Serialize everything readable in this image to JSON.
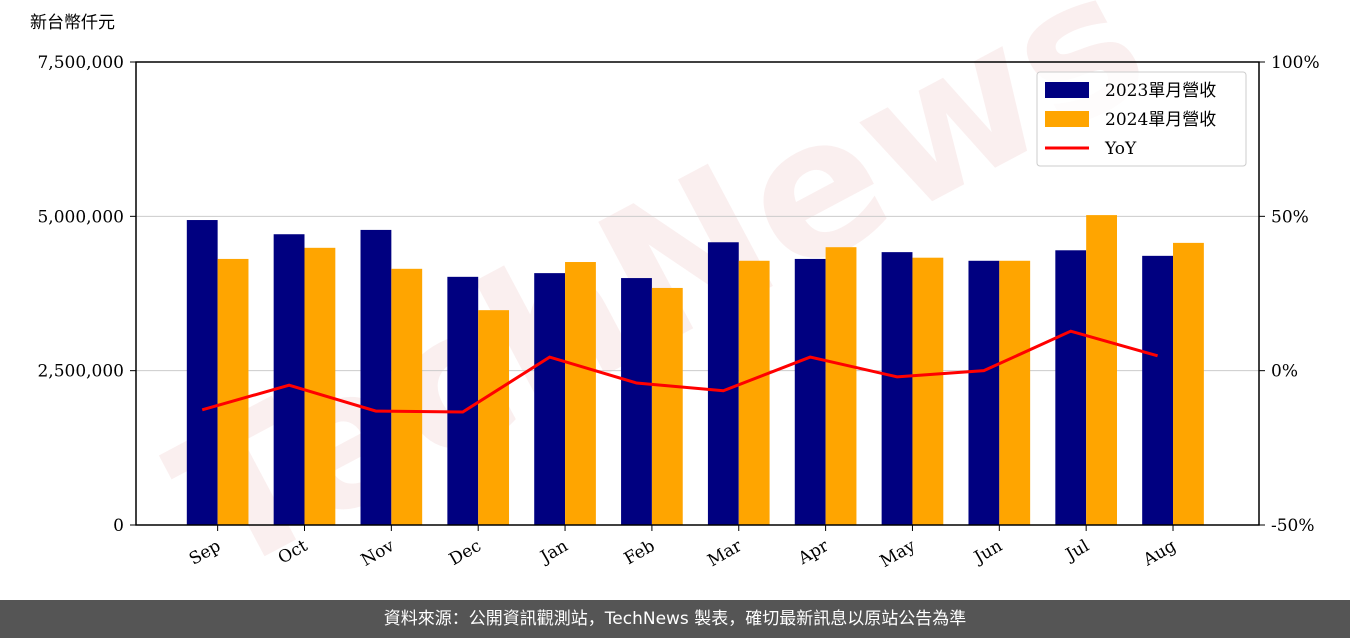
{
  "chart_data": {
    "type": "bar_line",
    "y_label": "新台幣仟元",
    "watermark": "TechNews",
    "categories": [
      "Sep",
      "Oct",
      "Nov",
      "Dec",
      "Jan",
      "Feb",
      "Mar",
      "Apr",
      "May",
      "Jun",
      "Jul",
      "Aug"
    ],
    "series": [
      {
        "name": "2023單月營收",
        "color": "#000080",
        "values": [
          4940000,
          4710000,
          4780000,
          4020000,
          4080000,
          4000000,
          4580000,
          4310000,
          4420000,
          4280000,
          4450000,
          4360000
        ]
      },
      {
        "name": "2024單月營收",
        "color": "#ffa500",
        "values": [
          4310000,
          4490000,
          4150000,
          3480000,
          4260000,
          3840000,
          4280000,
          4500000,
          4330000,
          4280000,
          5020000,
          4570000
        ]
      },
      {
        "name": "YoY",
        "color": "#ff0000",
        "type": "line",
        "axis": "y2",
        "values": [
          -12.7,
          -4.7,
          -13.1,
          -13.4,
          4.4,
          -4.0,
          -6.5,
          4.4,
          -2.0,
          0.0,
          12.8,
          4.8
        ]
      }
    ],
    "ylim": [
      0,
      7500000
    ],
    "yticks": [
      0,
      {
        "value": 2500000,
        "label": "2,500,000"
      },
      {
        "value": 5000000,
        "label": "5,000,000"
      },
      {
        "value": 7500000,
        "label": "7,500,000"
      }
    ],
    "y2lim": [
      -50,
      100
    ],
    "y2ticks": [
      {
        "value": -50,
        "label": "-50%"
      },
      {
        "value": 0,
        "label": "0%"
      },
      {
        "value": 50,
        "label": "50%"
      },
      {
        "value": 100,
        "label": "100%"
      }
    ],
    "grid": true,
    "legend": "upper right"
  },
  "footer": "資料來源：公開資訊觀測站，TechNews 製表，確切最新訊息以原站公告為準"
}
